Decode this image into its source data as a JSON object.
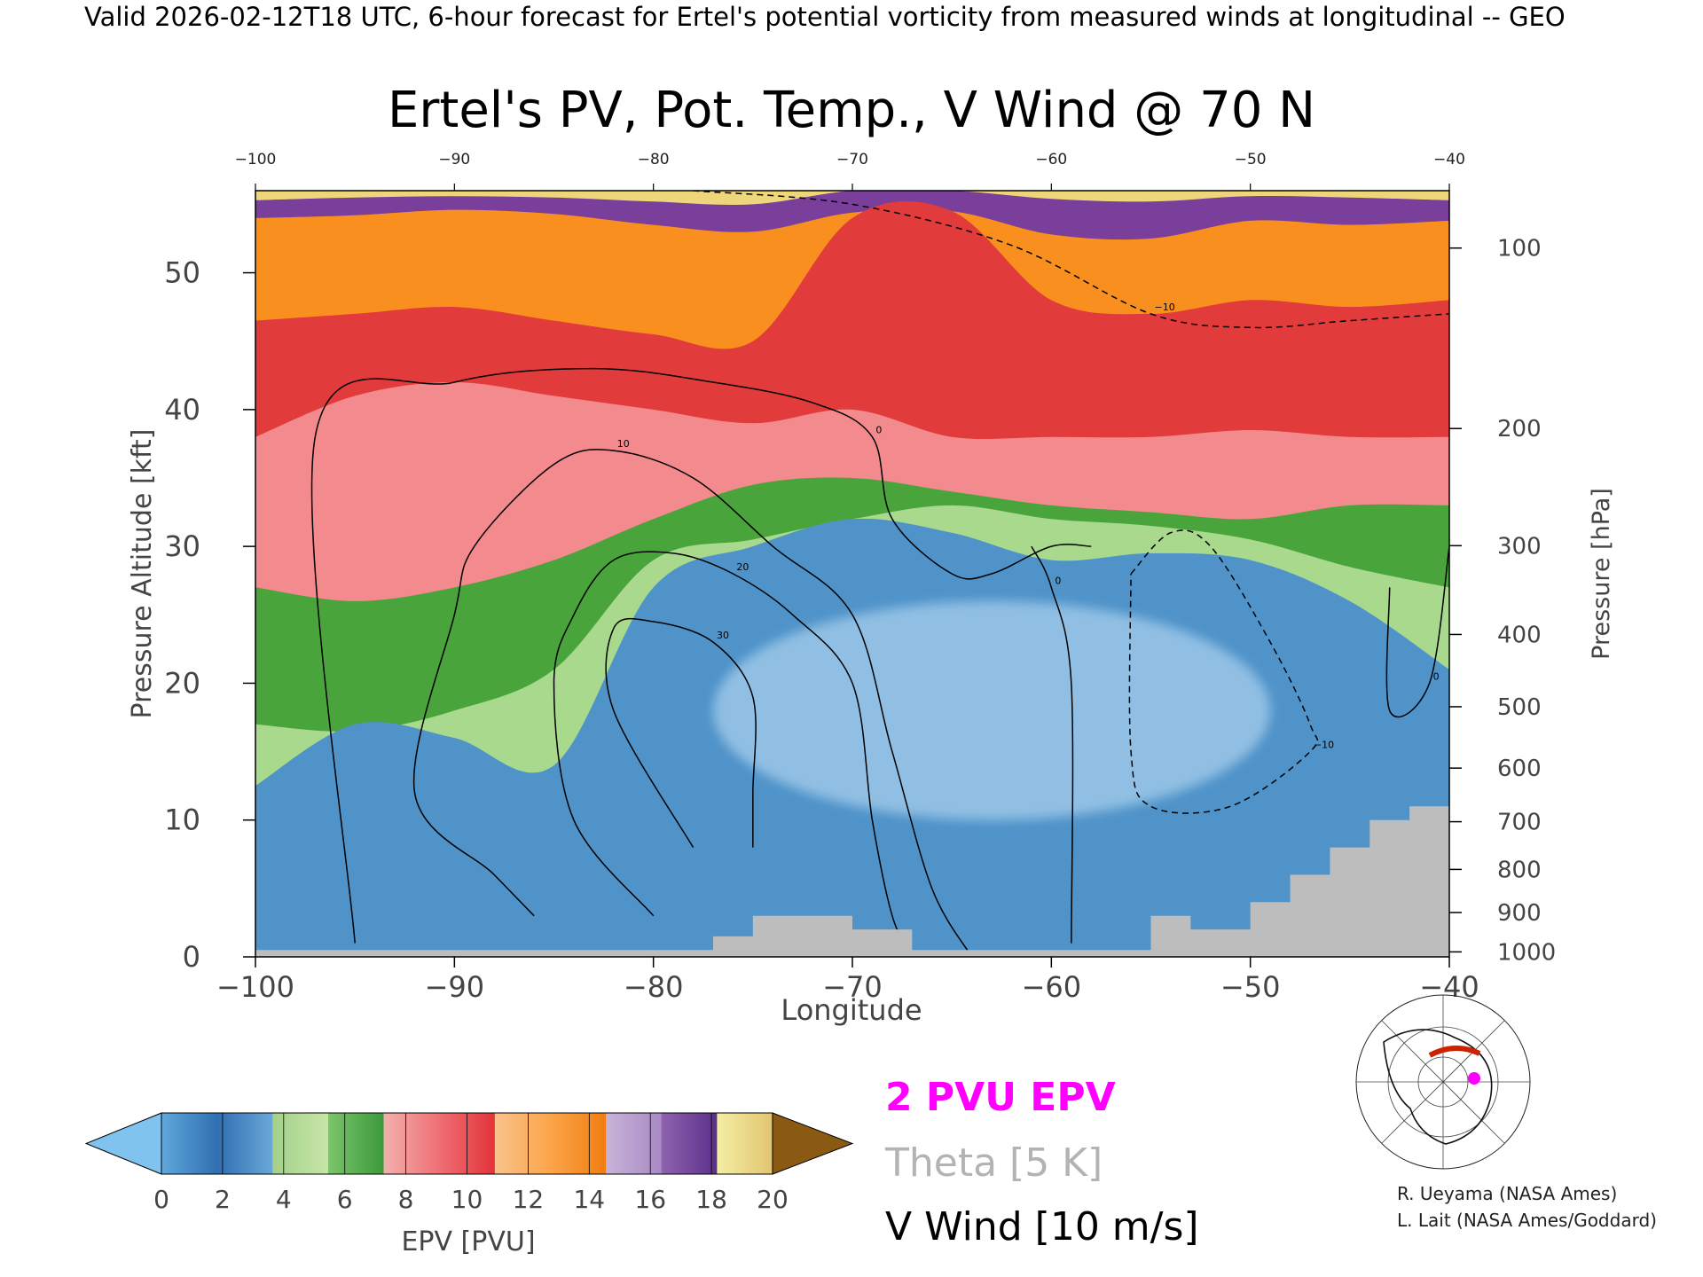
{
  "header": "Valid 2026-02-12T18 UTC, 6-hour forecast for Ertel's potential vorticity from measured winds at longitudinal -- GEO",
  "chart_data": {
    "type": "heatmap",
    "title": "Ertel's PV, Pot. Temp., V Wind @ 70 N",
    "xlabel": "Longitude",
    "ylabel_left": "Pressure Altitude [kft]",
    "ylabel_right": "Pressure [hPa]",
    "xlim": [
      -100,
      -40
    ],
    "ylim": [
      0,
      56
    ],
    "x_ticks": [
      -100,
      -90,
      -80,
      -70,
      -60,
      -50,
      -40
    ],
    "x_tick_labels": [
      "−100",
      "−90",
      "−80",
      "−70",
      "−60",
      "−50",
      "−40"
    ],
    "top_tick_labels": [
      "−100",
      "−90",
      "−80",
      "−70",
      "−60",
      "−50",
      "−40"
    ],
    "y_ticks": [
      0,
      10,
      20,
      30,
      40,
      50
    ],
    "y_tick_labels": [
      "0",
      "10",
      "20",
      "30",
      "40",
      "50"
    ],
    "pressure_ticks": [
      {
        "hpa": 100,
        "label": "100"
      },
      {
        "hpa": 200,
        "label": "200"
      },
      {
        "hpa": 300,
        "label": "300"
      },
      {
        "hpa": 400,
        "label": "400"
      },
      {
        "hpa": 500,
        "label": "500"
      },
      {
        "hpa": 600,
        "label": "600"
      },
      {
        "hpa": 700,
        "label": "700"
      },
      {
        "hpa": 800,
        "label": "800"
      },
      {
        "hpa": 900,
        "label": "900"
      },
      {
        "hpa": 1000,
        "label": "1000"
      }
    ],
    "epv_layers": [
      {
        "pvu": 20,
        "color": "#eed77a",
        "top": [
          56,
          56,
          56,
          56,
          56,
          56,
          56,
          56,
          56,
          56,
          56,
          56,
          56
        ]
      },
      {
        "pvu": 16,
        "color": "#7a3f9b",
        "top": [
          55.3,
          55.5,
          55.6,
          55.5,
          55.2,
          55,
          56,
          56,
          55.4,
          55.2,
          55.6,
          55.5,
          55.3
        ]
      },
      {
        "pvu": 12,
        "color": "#f98f1e",
        "top": [
          54,
          54.2,
          54.6,
          54.3,
          53.5,
          53,
          54.4,
          54.5,
          52.8,
          52.5,
          53.8,
          53.5,
          53.8
        ]
      },
      {
        "pvu": 9,
        "color": "#e23b3b",
        "top": [
          46.5,
          47,
          47.5,
          46.5,
          45.5,
          45,
          54,
          54.5,
          48,
          47,
          48,
          47.5,
          48
        ]
      },
      {
        "pvu": 7,
        "color": "#f38a8e",
        "top": [
          38,
          41,
          42,
          41,
          40,
          39,
          40,
          38,
          38,
          38,
          38.5,
          38,
          38
        ]
      },
      {
        "pvu": 5,
        "color": "#49a43c",
        "top": [
          27,
          26,
          27,
          29,
          32,
          34.5,
          35,
          34,
          33,
          32.5,
          32,
          33,
          33
        ]
      },
      {
        "pvu": 3,
        "color": "#a8d98d",
        "top": [
          17,
          16.5,
          18,
          21,
          29,
          30.5,
          32,
          33,
          32,
          31.5,
          30.5,
          28.5,
          27
        ]
      },
      {
        "pvu": 1,
        "color": "#4f93c9",
        "top": [
          12.5,
          17,
          16,
          14,
          27,
          30,
          32,
          31,
          29,
          29.5,
          29,
          26,
          21
        ]
      }
    ],
    "inner_light_core": {
      "pvu": 0.5,
      "color": "#9cc7e8",
      "center_lon": -63,
      "center_alt": 18,
      "half_width_lon": 14,
      "half_height_kft": 8
    },
    "terrain_steps": [
      [
        -100,
        0.5
      ],
      [
        -93,
        0.5
      ],
      [
        -87,
        0.5
      ],
      [
        -81,
        0.5
      ],
      [
        -77,
        1.5
      ],
      [
        -75,
        3
      ],
      [
        -70,
        2
      ],
      [
        -67,
        0.5
      ],
      [
        -55,
        3
      ],
      [
        -53,
        2
      ],
      [
        -50,
        4
      ],
      [
        -48,
        6
      ],
      [
        -46,
        8
      ],
      [
        -44,
        10
      ],
      [
        -42,
        11
      ],
      [
        -40,
        11
      ]
    ],
    "terrain_color": "#bdbdbd",
    "theta_contours": {
      "label": "Theta [5 K]",
      "interval_K": 5,
      "color": "#9a9a9a"
    },
    "epv_2pvu_contour_label": "2 PVU EPV",
    "v_wind_contours": {
      "label": "V Wind [10 m/s]",
      "lines": [
        {
          "value": 0,
          "label": "0",
          "dashed": false,
          "points": [
            [
              -95,
              1
            ],
            [
              -97,
              38
            ],
            [
              -90,
              42
            ],
            [
              -83,
              43
            ],
            [
              -77,
              42
            ],
            [
              -72,
              40.5
            ],
            [
              -69,
              38
            ],
            [
              -68,
              32
            ],
            [
              -65,
              28
            ],
            [
              -63,
              28
            ],
            [
              -60,
              30
            ],
            [
              -58,
              30
            ]
          ]
        },
        {
          "value": 10,
          "label": "10",
          "dashed": false,
          "points": [
            [
              -86,
              3
            ],
            [
              -88,
              6
            ],
            [
              -92,
              12
            ],
            [
              -90,
              25
            ],
            [
              -89,
              30
            ],
            [
              -85,
              36
            ],
            [
              -82,
              37
            ],
            [
              -78,
              35
            ],
            [
              -74,
              30
            ],
            [
              -70,
              25
            ],
            [
              -68,
              15
            ],
            [
              -66,
              5
            ],
            [
              -64,
              0
            ]
          ]
        },
        {
          "value": 20,
          "label": "20",
          "dashed": false,
          "points": [
            [
              -80,
              3
            ],
            [
              -84,
              10
            ],
            [
              -85,
              20
            ],
            [
              -84,
              25
            ],
            [
              -82,
              29
            ],
            [
              -79,
              29.5
            ],
            [
              -76,
              28
            ],
            [
              -73,
              25
            ],
            [
              -70,
              20
            ],
            [
              -69,
              10
            ],
            [
              -68,
              3
            ],
            [
              -67,
              0
            ]
          ]
        },
        {
          "value": 30,
          "label": "30",
          "dashed": false,
          "points": [
            [
              -78,
              8
            ],
            [
              -82,
              18
            ],
            [
              -82,
              24
            ],
            [
              -80,
              24.5
            ],
            [
              -77,
              23
            ],
            [
              -75,
              19
            ],
            [
              -75,
              12
            ],
            [
              -75,
              8
            ]
          ]
        },
        {
          "value": 0,
          "label": "0",
          "dashed": false,
          "points": [
            [
              -59,
              1
            ],
            [
              -59,
              20
            ],
            [
              -60,
              27
            ],
            [
              -61,
              30
            ]
          ]
        },
        {
          "value": 0,
          "label": "0",
          "dashed": false,
          "points": [
            [
              -43,
              27
            ],
            [
              -43,
              18
            ],
            [
              -41,
              20
            ],
            [
              -40,
              30
            ]
          ]
        },
        {
          "value": -10,
          "label": "−10",
          "dashed": true,
          "points": [
            [
              -56,
              28
            ],
            [
              -54,
              31
            ],
            [
              -52,
              30
            ],
            [
              -49,
              23
            ],
            [
              -47,
              17
            ],
            [
              -47,
              15
            ],
            [
              -51,
              11
            ],
            [
              -55,
              11
            ],
            [
              -56,
              15
            ],
            [
              -56,
              28
            ]
          ]
        },
        {
          "value": -10,
          "label": "−10",
          "dashed": true,
          "points": [
            [
              -78,
              56
            ],
            [
              -70,
              55
            ],
            [
              -62,
              52
            ],
            [
              -55,
              47
            ],
            [
              -50,
              46
            ],
            [
              -45,
              46.5
            ],
            [
              -40,
              47
            ]
          ]
        }
      ]
    },
    "colorbar": {
      "label": "EPV [PVU]",
      "ticks": [
        "0",
        "2",
        "4",
        "6",
        "8",
        "10",
        "12",
        "14",
        "16",
        "18",
        "20"
      ],
      "low_extend_color": "#7fc3ee",
      "high_extend_color": "#8a5a12",
      "segments": [
        [
          "#5fa8dc",
          "#2f6fb2"
        ],
        [
          "#2f6fb2",
          "#6aa8d8"
        ],
        [
          "#a3d08a",
          "#c8e6a8"
        ],
        [
          "#7cc46a",
          "#3b9a3c"
        ],
        [
          "#f2b0ad",
          "#ef6f74"
        ],
        [
          "#ef6f74",
          "#e2333a"
        ],
        [
          "#f9c28b",
          "#fca54a"
        ],
        [
          "#fca54a",
          "#f07d10"
        ],
        [
          "#c8b3d8",
          "#a889c4"
        ],
        [
          "#8e63ad",
          "#5b2f8a"
        ],
        [
          "#f3eea4",
          "#e2c46f"
        ]
      ]
    }
  },
  "legend_block": {
    "epv_label": "2 PVU EPV",
    "theta_label": "Theta [5 K]",
    "vwind_label": "V Wind [10 m/s]",
    "epv_color": "#ff00ff",
    "theta_color": "#b3b3b3",
    "vwind_color": "#000000"
  },
  "credits": {
    "line1": "R. Ueyama (NASA Ames)",
    "line2": "L. Lait (NASA Ames/Goddard)"
  },
  "colors": {
    "accent_epv": "#ff00ff",
    "theta_line": "#9a9a9a",
    "terrain": "#bdbdbd"
  }
}
